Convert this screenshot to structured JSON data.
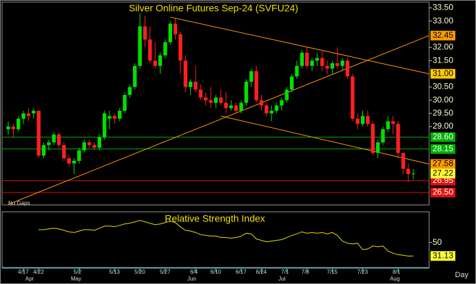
{
  "chart_data": {
    "type": "candlestick",
    "title": "Silver Online Futures Sep-24 (SVFU24)",
    "note": "No Gaps",
    "period_label": "Day",
    "categories": [
      null,
      null,
      null,
      "4/17",
      null,
      null,
      "4/22",
      null,
      null,
      null,
      null,
      null,
      null,
      null,
      "5/2",
      null,
      null,
      null,
      null,
      null,
      null,
      "5/13",
      null,
      null,
      null,
      null,
      "5/20",
      null,
      null,
      null,
      null,
      "5/27",
      null,
      null,
      null,
      null,
      null,
      "6/4",
      null,
      null,
      null,
      "6/10",
      null,
      null,
      null,
      null,
      "6/17",
      null,
      null,
      null,
      "6/24",
      null,
      null,
      null,
      null,
      "7/1",
      null,
      null,
      null,
      "7/8",
      null,
      null,
      null,
      null,
      "7/15",
      null,
      null,
      null,
      null,
      null,
      "7/23",
      null,
      null,
      null,
      null,
      null,
      null,
      "8/1",
      null,
      null,
      null
    ],
    "months": [
      null,
      null,
      null,
      null,
      null,
      "Apr",
      null,
      null,
      null,
      null,
      null,
      null,
      null,
      null,
      "May",
      null,
      null,
      null,
      null,
      null,
      null,
      null,
      null,
      null,
      null,
      null,
      null,
      null,
      null,
      null,
      null,
      null,
      null,
      null,
      null,
      null,
      null,
      "Jun",
      null,
      null,
      null,
      null,
      null,
      null,
      null,
      null,
      null,
      null,
      null,
      null,
      null,
      null,
      null,
      null,
      null,
      "Jul",
      null,
      null,
      null,
      null,
      null,
      null,
      null,
      null,
      null,
      null,
      null,
      null,
      null,
      null,
      null,
      null,
      null,
      null,
      null,
      null,
      null,
      "Aug",
      null,
      null,
      null
    ],
    "open": [
      28.9,
      29.0,
      28.9,
      29.3,
      29.5,
      29.5,
      29.6,
      27.9,
      28.3,
      28.4,
      28.7,
      28.3,
      27.8,
      27.6,
      27.7,
      28.1,
      28.4,
      28.3,
      28.2,
      28.6,
      29.3,
      29.4,
      29.3,
      29.6,
      30.2,
      30.5,
      31.3,
      32.8,
      32.3,
      31.5,
      31.3,
      31.7,
      32.2,
      32.9,
      32.5,
      31.5,
      30.5,
      30.7,
      30.4,
      30.1,
      30.0,
      29.9,
      30.1,
      29.9,
      29.7,
      29.8,
      29.6,
      29.9,
      30.7,
      31.1,
      30.0,
      29.8,
      29.5,
      29.6,
      29.8,
      30.0,
      30.4,
      30.9,
      31.3,
      31.8,
      31.3,
      31.5,
      31.6,
      31.3,
      31.2,
      31.4,
      31.3,
      31.5,
      30.9,
      29.3,
      29.1,
      29.4,
      29.1,
      28.0,
      28.4,
      28.9,
      29.2,
      29.1,
      28.0,
      27.4,
      27.2
    ],
    "high": [
      29.2,
      29.1,
      29.4,
      29.6,
      29.7,
      29.7,
      29.6,
      28.4,
      28.5,
      28.8,
      28.8,
      28.4,
      27.9,
      27.8,
      28.2,
      28.5,
      28.5,
      28.4,
      28.7,
      29.6,
      29.6,
      29.5,
      29.7,
      30.3,
      30.6,
      31.4,
      33.3,
      33.2,
      32.8,
      32.2,
      31.8,
      32.3,
      33.0,
      33.1,
      32.6,
      31.7,
      30.8,
      31.3,
      30.6,
      30.3,
      30.5,
      30.2,
      30.4,
      30.3,
      30.0,
      29.9,
      30.0,
      30.8,
      31.2,
      31.3,
      30.2,
      29.9,
      29.8,
      29.9,
      30.1,
      30.5,
      31.0,
      31.5,
      31.9,
      32.0,
      31.6,
      31.8,
      31.9,
      31.5,
      31.5,
      32.0,
      31.6,
      31.6,
      31.0,
      29.5,
      29.6,
      29.6,
      29.2,
      28.5,
      29.0,
      29.4,
      29.4,
      29.2,
      28.0,
      27.6,
      27.4
    ],
    "low": [
      28.7,
      28.6,
      28.8,
      29.1,
      29.2,
      29.3,
      27.8,
      27.8,
      28.1,
      28.3,
      28.2,
      27.7,
      27.5,
      27.2,
      27.6,
      28.0,
      28.2,
      28.1,
      28.1,
      28.5,
      28.9,
      29.1,
      29.2,
      29.5,
      30.1,
      30.4,
      31.2,
      32.0,
      31.4,
      31.2,
      31.0,
      31.6,
      32.1,
      32.3,
      31.0,
      30.3,
      30.2,
      30.3,
      30.0,
      29.8,
      29.7,
      29.7,
      29.8,
      29.5,
      29.6,
      29.5,
      29.5,
      29.8,
      30.5,
      29.9,
      29.6,
      29.4,
      29.2,
      29.5,
      29.6,
      29.9,
      30.3,
      30.8,
      31.2,
      31.2,
      31.1,
      31.3,
      31.1,
      31.0,
      31.0,
      31.2,
      31.1,
      30.8,
      29.2,
      28.9,
      29.0,
      29.0,
      27.9,
      27.8,
      28.3,
      28.8,
      28.7,
      27.8,
      27.2,
      26.9,
      27.0
    ],
    "close": [
      29.0,
      28.9,
      29.3,
      29.5,
      29.4,
      29.6,
      27.9,
      28.3,
      28.4,
      28.7,
      28.3,
      27.8,
      27.6,
      27.7,
      28.1,
      28.4,
      28.3,
      28.2,
      28.6,
      29.5,
      29.4,
      29.3,
      29.6,
      30.2,
      30.5,
      31.3,
      32.8,
      32.3,
      31.5,
      31.3,
      31.7,
      32.2,
      32.9,
      32.5,
      31.5,
      30.5,
      30.7,
      30.4,
      30.1,
      30.0,
      29.9,
      30.1,
      29.9,
      29.7,
      29.8,
      29.6,
      29.9,
      30.7,
      31.1,
      30.0,
      29.8,
      29.5,
      29.6,
      29.8,
      30.0,
      30.4,
      30.9,
      31.3,
      31.8,
      31.3,
      31.5,
      31.6,
      31.3,
      31.2,
      31.4,
      31.3,
      31.5,
      30.9,
      29.3,
      29.1,
      29.4,
      29.1,
      28.0,
      28.4,
      28.9,
      29.2,
      29.1,
      28.0,
      27.4,
      27.2,
      27.22
    ],
    "up_color": "#00e000",
    "down_color": "#ff2020",
    "ylim": [
      26.03,
      33.72
    ],
    "yticks": [
      {
        "value": 33.5,
        "label": "33.50"
      },
      {
        "value": 33,
        "label": "33.00"
      },
      {
        "value": 32,
        "label": "32.00"
      },
      {
        "value": 31.5,
        "label": "31.50"
      },
      {
        "value": 30.5,
        "label": "30.50"
      },
      {
        "value": 30,
        "label": "30.00"
      },
      {
        "value": 29.5,
        "label": "29.50"
      },
      {
        "value": 29,
        "label": "29.00"
      }
    ],
    "levels": [
      {
        "value": 28.6,
        "label": "28.60",
        "color": "#00b000"
      },
      {
        "value": 28.15,
        "label": "28.15",
        "color": "#00b000"
      },
      {
        "value": 26.95,
        "label": "26.95",
        "color": "#e01010"
      },
      {
        "value": 26.5,
        "label": "26.50",
        "color": "#e01010"
      }
    ],
    "trendlines": [
      {
        "start_index": 0,
        "start_value": 26.05,
        "end_value": 32.45,
        "end_label": "32.45",
        "label_color": "#ff9900"
      },
      {
        "start_index": 32,
        "start_value": 33.15,
        "end_value": 31.0,
        "end_label": "31.00",
        "label_color": "#ffcc00"
      },
      {
        "start_index": 42,
        "start_value": 29.4,
        "end_value": 27.58,
        "end_label": "27.58",
        "label_color": "#ff9900"
      }
    ],
    "trendline_color": "#ff9900",
    "last_label_color": "#ffff33",
    "rsi": {
      "title": "Relative Strength Index",
      "color": "#e8e000",
      "ylim": [
        15,
        93
      ],
      "yticks": [
        50
      ],
      "values": [
        null,
        null,
        null,
        null,
        null,
        null,
        68,
        68,
        69,
        70,
        69,
        67,
        65,
        64,
        66,
        68,
        68,
        67,
        70,
        73,
        73,
        72,
        74,
        76,
        77,
        79,
        81,
        79,
        77,
        75,
        76,
        78,
        80,
        78,
        72,
        67,
        66,
        64,
        61,
        60,
        59,
        59,
        57,
        57,
        56,
        57,
        59,
        63,
        62,
        55,
        53,
        51,
        52,
        53,
        54,
        57,
        60,
        62,
        65,
        63,
        64,
        63,
        64,
        62,
        64,
        60,
        52,
        49,
        48,
        49,
        40,
        41,
        45,
        44,
        45,
        38,
        35,
        33,
        32,
        31,
        31.13
      ]
    }
  }
}
